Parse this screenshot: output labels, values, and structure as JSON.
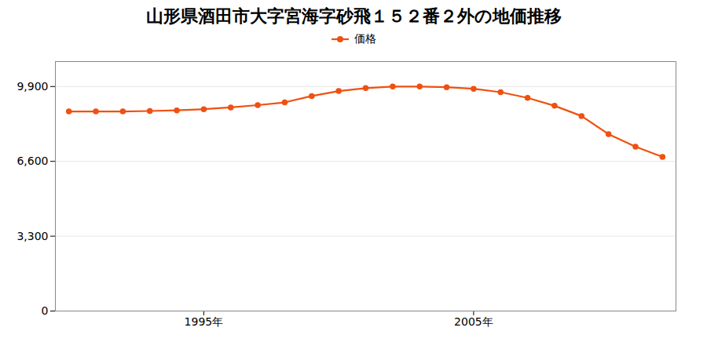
{
  "chart_data": {
    "type": "line",
    "title": "山形県酒田市大字宮海字砂飛１５２番２外の地価推移",
    "x": [
      1990,
      1991,
      1992,
      1993,
      1994,
      1995,
      1996,
      1997,
      1998,
      1999,
      2000,
      2001,
      2002,
      2003,
      2004,
      2005,
      2006,
      2007,
      2008,
      2009,
      2010,
      2011,
      2012
    ],
    "series": [
      {
        "name": "価格",
        "color": "#f05010",
        "values": [
          8800,
          8800,
          8800,
          8820,
          8850,
          8900,
          8980,
          9080,
          9200,
          9480,
          9700,
          9830,
          9900,
          9900,
          9870,
          9800,
          9650,
          9400,
          9050,
          8600,
          7800,
          7250,
          6800
        ]
      }
    ],
    "marker": "circle",
    "xlim": [
      1989.5,
      2012.5
    ],
    "xticks": [
      {
        "value": 1995,
        "label": "1995年"
      },
      {
        "value": 2005,
        "label": "2005年"
      }
    ],
    "ylim": [
      0,
      11000
    ],
    "yticks": [
      0,
      {
        "value": 3300,
        "label": "3,300"
      },
      {
        "value": 6600,
        "label": "6,600"
      },
      {
        "value": 9900,
        "label": "9,900"
      }
    ],
    "grid": true,
    "legend": "top"
  }
}
